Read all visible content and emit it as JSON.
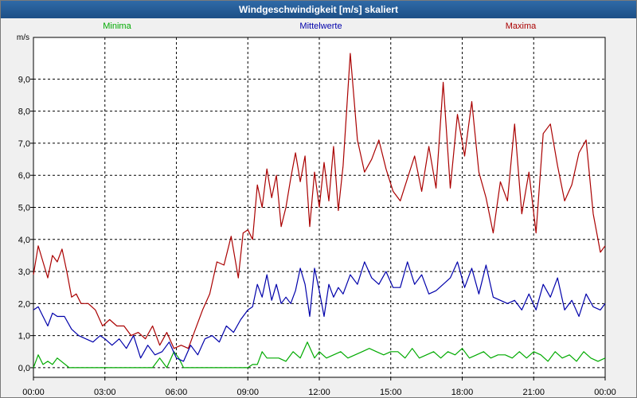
{
  "window": {
    "title": "Windgeschwindigkeit [m/s] skaliert"
  },
  "chart_data": {
    "type": "line",
    "title": "Windgeschwindigkeit [m/s] skaliert",
    "ylabel": "m/s",
    "xlabel": "",
    "ylim": [
      -0.3,
      10.3
    ],
    "xlim": [
      0,
      24
    ],
    "grid": true,
    "legend_position": "top",
    "y_ticks": [
      {
        "value": 0,
        "label": "0,0"
      },
      {
        "value": 1,
        "label": "1,0"
      },
      {
        "value": 2,
        "label": "2,0"
      },
      {
        "value": 3,
        "label": "3,0"
      },
      {
        "value": 4,
        "label": "4,0"
      },
      {
        "value": 5,
        "label": "5,0"
      },
      {
        "value": 6,
        "label": "6,0"
      },
      {
        "value": 7,
        "label": "7,0"
      },
      {
        "value": 8,
        "label": "8,0"
      },
      {
        "value": 9,
        "label": "9,0"
      }
    ],
    "x_ticks": [
      {
        "value": 0,
        "time": "00:00",
        "date": "25.03.20"
      },
      {
        "value": 3,
        "time": "03:00",
        "date": "25.03.20"
      },
      {
        "value": 6,
        "time": "06:00",
        "date": "25.03.20"
      },
      {
        "value": 9,
        "time": "09:00",
        "date": "25.03.20"
      },
      {
        "value": 12,
        "time": "12:00",
        "date": "25.03.20"
      },
      {
        "value": 15,
        "time": "15:00",
        "date": "25.03.20"
      },
      {
        "value": 18,
        "time": "18:00",
        "date": "25.03.20"
      },
      {
        "value": 21,
        "time": "21:00",
        "date": "25.03.20"
      },
      {
        "value": 24,
        "time": "00:00",
        "date": "26.03.20"
      }
    ],
    "series": [
      {
        "name": "Minima",
        "color": "#00aa00",
        "x": [
          0,
          0.2,
          0.4,
          0.6,
          0.8,
          1,
          1.5,
          2,
          2.5,
          3,
          3.5,
          4,
          4.5,
          5,
          5.3,
          5.6,
          5.9,
          6.1,
          6.3,
          6.5,
          7,
          7.5,
          8,
          8.5,
          8.8,
          9,
          9.2,
          9.4,
          9.6,
          9.8,
          10,
          10.3,
          10.6,
          10.9,
          11.2,
          11.5,
          11.8,
          12,
          12.3,
          12.6,
          12.9,
          13.2,
          13.5,
          13.8,
          14.1,
          14.4,
          14.7,
          15,
          15.3,
          15.6,
          15.9,
          16.2,
          16.5,
          16.8,
          17.1,
          17.4,
          17.7,
          18,
          18.3,
          18.6,
          18.9,
          19.2,
          19.5,
          19.8,
          20.1,
          20.4,
          20.7,
          21,
          21.3,
          21.6,
          21.9,
          22.2,
          22.5,
          22.8,
          23.1,
          23.4,
          23.7,
          24
        ],
        "values": [
          0,
          0.4,
          0.1,
          0.2,
          0.1,
          0.3,
          0,
          0,
          0,
          0,
          0,
          0,
          0,
          0,
          0.3,
          0,
          0.5,
          0.3,
          0,
          0,
          0,
          0,
          0,
          0,
          0,
          0,
          0.1,
          0.1,
          0.5,
          0.3,
          0.3,
          0.3,
          0.2,
          0.5,
          0.3,
          0.8,
          0.3,
          0.5,
          0.3,
          0.4,
          0.5,
          0.3,
          0.4,
          0.5,
          0.6,
          0.5,
          0.4,
          0.5,
          0.5,
          0.3,
          0.6,
          0.3,
          0.4,
          0.5,
          0.3,
          0.5,
          0.4,
          0.6,
          0.3,
          0.4,
          0.5,
          0.3,
          0.4,
          0.4,
          0.3,
          0.5,
          0.3,
          0.5,
          0.4,
          0.2,
          0.5,
          0.3,
          0.4,
          0.2,
          0.5,
          0.3,
          0.2,
          0.3
        ]
      },
      {
        "name": "Mittelwerte",
        "color": "#0000aa",
        "x": [
          0,
          0.2,
          0.4,
          0.6,
          0.8,
          1,
          1.3,
          1.6,
          1.9,
          2.2,
          2.5,
          2.8,
          3,
          3.3,
          3.6,
          3.9,
          4.2,
          4.5,
          4.8,
          5.1,
          5.4,
          5.7,
          6,
          6.3,
          6.6,
          6.9,
          7.2,
          7.5,
          7.8,
          8.1,
          8.4,
          8.7,
          9,
          9.2,
          9.4,
          9.6,
          9.8,
          10,
          10.2,
          10.4,
          10.6,
          10.8,
          11,
          11.2,
          11.4,
          11.6,
          11.8,
          12,
          12.2,
          12.4,
          12.6,
          12.8,
          13,
          13.3,
          13.6,
          13.9,
          14.2,
          14.5,
          14.8,
          15.1,
          15.4,
          15.7,
          16,
          16.3,
          16.6,
          16.9,
          17.2,
          17.5,
          17.8,
          18.1,
          18.4,
          18.7,
          19,
          19.3,
          19.6,
          19.9,
          20.2,
          20.5,
          20.8,
          21.1,
          21.4,
          21.7,
          22,
          22.3,
          22.6,
          22.9,
          23.2,
          23.5,
          23.8,
          24
        ],
        "values": [
          1.8,
          1.9,
          1.6,
          1.3,
          1.7,
          1.6,
          1.6,
          1.2,
          1,
          0.9,
          0.8,
          1,
          0.9,
          0.7,
          0.9,
          0.6,
          1,
          0.3,
          0.7,
          0.4,
          0.5,
          0.8,
          0.3,
          0.2,
          0.7,
          0.4,
          0.9,
          1,
          0.8,
          1.3,
          1.1,
          1.5,
          1.8,
          1.9,
          2.6,
          2.2,
          2.9,
          2.1,
          2.6,
          2,
          2.2,
          2,
          2.4,
          3.1,
          2.6,
          1.6,
          3.1,
          2.4,
          1.6,
          2.6,
          2.2,
          2.5,
          2.3,
          2.9,
          2.6,
          3.3,
          2.8,
          2.6,
          3,
          2.5,
          2.5,
          3.3,
          2.6,
          2.9,
          2.3,
          2.4,
          2.6,
          2.8,
          3.3,
          2.5,
          3.1,
          2.3,
          3.2,
          2.2,
          2.1,
          2,
          2.1,
          1.8,
          2.3,
          1.8,
          2.6,
          2.2,
          2.8,
          1.8,
          2.1,
          1.6,
          2.3,
          1.9,
          1.8,
          2
        ]
      },
      {
        "name": "Maxima",
        "color": "#aa0000",
        "x": [
          0,
          0.2,
          0.4,
          0.6,
          0.8,
          1,
          1.2,
          1.4,
          1.6,
          1.8,
          2,
          2.3,
          2.6,
          2.9,
          3.2,
          3.5,
          3.8,
          4.1,
          4.4,
          4.7,
          5,
          5.3,
          5.6,
          5.9,
          6.2,
          6.5,
          6.8,
          7.1,
          7.4,
          7.7,
          8,
          8.3,
          8.6,
          8.8,
          9,
          9.2,
          9.4,
          9.6,
          9.8,
          10,
          10.2,
          10.4,
          10.6,
          10.8,
          11,
          11.2,
          11.4,
          11.6,
          11.8,
          12,
          12.2,
          12.4,
          12.6,
          12.8,
          13,
          13.3,
          13.6,
          13.9,
          14.2,
          14.5,
          14.8,
          15.1,
          15.4,
          15.7,
          16,
          16.3,
          16.6,
          16.9,
          17.2,
          17.5,
          17.8,
          18.1,
          18.4,
          18.7,
          19,
          19.3,
          19.6,
          19.9,
          20.2,
          20.5,
          20.8,
          21.1,
          21.4,
          21.7,
          22,
          22.3,
          22.6,
          22.9,
          23.2,
          23.5,
          23.8,
          24
        ],
        "values": [
          2.9,
          3.8,
          3.3,
          2.8,
          3.5,
          3.3,
          3.7,
          3,
          2.2,
          2.3,
          2,
          2,
          1.8,
          1.3,
          1.5,
          1.3,
          1.3,
          1,
          1.1,
          0.9,
          1.3,
          0.7,
          1.1,
          0.6,
          0.7,
          0.6,
          1.2,
          1.8,
          2.3,
          3.3,
          3.2,
          4.1,
          2.8,
          4.2,
          4.3,
          4,
          5.7,
          5,
          6.2,
          5.3,
          6,
          4.4,
          5,
          5.9,
          6.7,
          5.8,
          6.6,
          4.4,
          6.1,
          5,
          6.4,
          5.2,
          6.9,
          4.9,
          6.3,
          9.8,
          7.1,
          6.1,
          6.5,
          7.1,
          6.2,
          5.5,
          5.2,
          5.9,
          6.6,
          5.5,
          6.9,
          5.6,
          8.9,
          5.6,
          7.9,
          6.6,
          8.3,
          6.1,
          5.3,
          4.2,
          5.8,
          5.2,
          7.6,
          4.8,
          6.1,
          4.2,
          7.3,
          7.6,
          6.3,
          5.2,
          5.7,
          6.7,
          7.1,
          4.8,
          3.6,
          3.8
        ]
      }
    ]
  }
}
